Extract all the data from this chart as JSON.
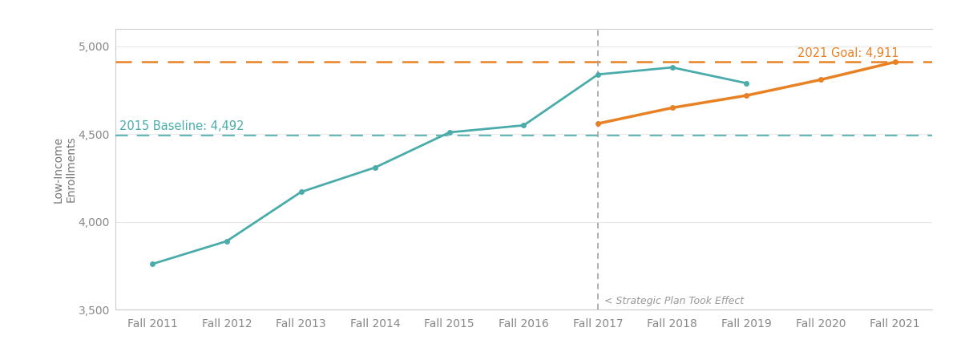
{
  "categories": [
    "Fall 2011",
    "Fall 2012",
    "Fall 2013",
    "Fall 2014",
    "Fall 2015",
    "Fall 2016",
    "Fall 2017",
    "Fall 2018",
    "Fall 2019",
    "Fall 2020",
    "Fall 2021"
  ],
  "actual_values": [
    3760,
    3890,
    4170,
    4310,
    4510,
    4550,
    4840,
    4880,
    4790,
    null,
    null
  ],
  "trend_values": [
    null,
    null,
    null,
    null,
    null,
    null,
    4560,
    4650,
    4720,
    4810,
    4911
  ],
  "baseline_value": 4492,
  "goal_value": 4911,
  "teal_color": "#4aacaa",
  "orange_color": "#e88124",
  "baseline_label": "2015 Baseline: 4,492",
  "goal_label": "2021 Goal: 4,911",
  "strategic_plan_label": "< Strategic Plan Took Effect",
  "ylabel": "Low-Income\nEnrollments",
  "ylim": [
    3500,
    5100
  ],
  "yticks": [
    3500,
    4000,
    4500,
    5000
  ],
  "ytick_labels": [
    "3,500",
    "4,000",
    "4,500",
    "5,000"
  ],
  "vline_index": 6,
  "background_color": "#ffffff",
  "spine_color": "#cccccc",
  "tick_label_color": "#888888",
  "grid_color": "#e8e8e8"
}
